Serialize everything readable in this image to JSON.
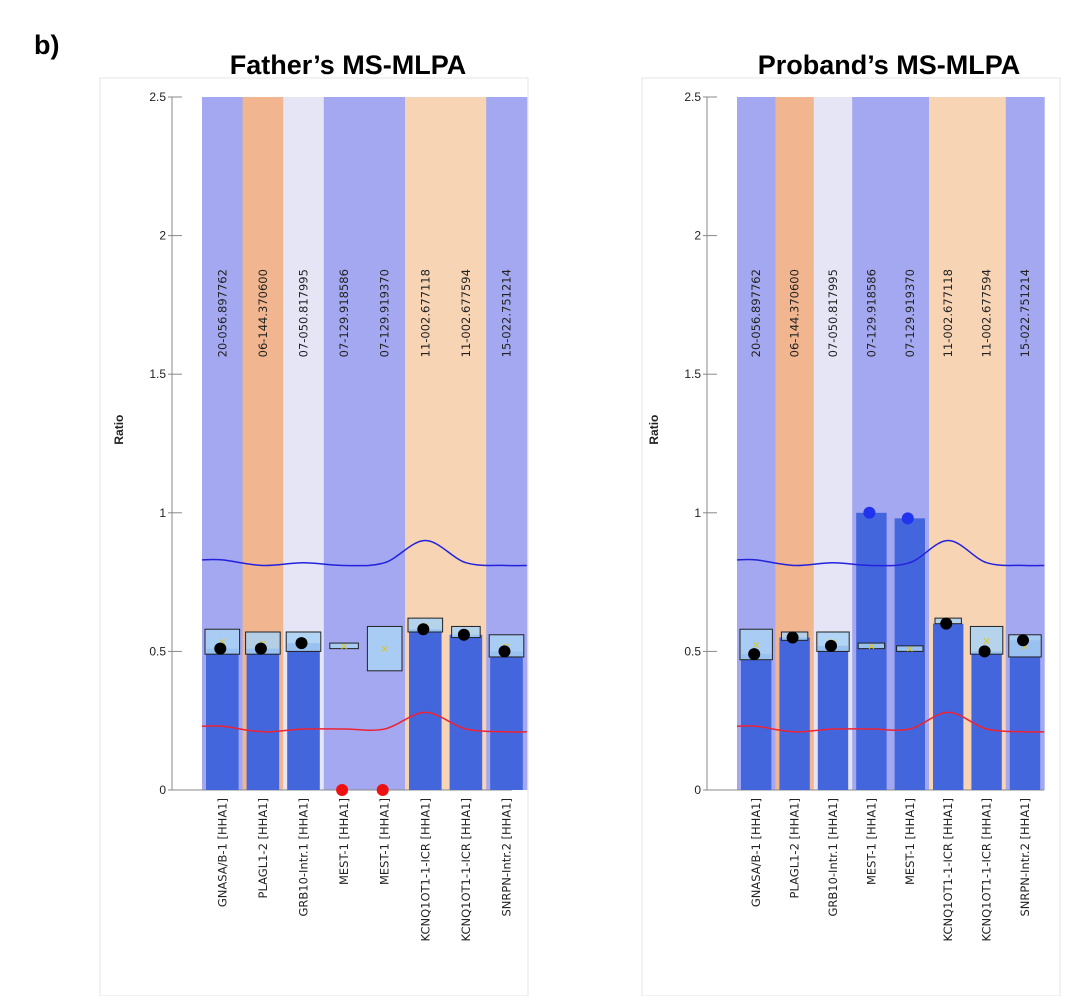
{
  "panel_label": "b)",
  "colors": {
    "lane_blue": "#a3a8f0",
    "lane_orange": "#f1b68f",
    "lane_lavender": "#e5e5f6",
    "lane_peach": "#f7d4b4",
    "bar": "#4466dd",
    "box_fill": "#a9d2f5",
    "dot": "#000000",
    "dot_blue": "#2233ee",
    "dot_red": "#ee1111",
    "upper_line": "#2222dd",
    "lower_line": "#ee2233"
  },
  "chart_data": [
    {
      "type": "bar",
      "title": "Father’s MS-MLPA",
      "ylabel": "Ratio",
      "ylim": [
        0,
        2.5
      ],
      "yticks": [
        "0",
        "0.5",
        "1",
        "1.5",
        "2",
        "2.5"
      ],
      "lane_colors": [
        "lane_blue",
        "lane_orange",
        "lane_lavender",
        "lane_blue",
        "lane_blue",
        "lane_peach",
        "lane_peach",
        "lane_blue"
      ],
      "categories": [
        "GNASA/B-1 [HHA1]",
        "PLAGL1-2 [HHA1]",
        "GRB10-Intr.1 [HHA1]",
        "MEST-1 [HHA1]",
        "MEST-1 [HHA1]",
        "KCNQ1OT1-1-ICR [HHA1]",
        "KCNQ1OT1-1-ICR [HHA1]",
        "SNRPN-Intr.2 [HHA1]"
      ],
      "positions": [
        "20-056.897762",
        "06-144.370600",
        "07-050.817995",
        "07-129.918586",
        "07-129.919370",
        "11-002.677118",
        "11-002.677594",
        "15-022.751214"
      ],
      "values": [
        0.51,
        0.51,
        0.53,
        0.0,
        0.0,
        0.58,
        0.56,
        0.5
      ],
      "bar_heights": [
        0.51,
        0.51,
        0.53,
        null,
        null,
        0.58,
        0.56,
        0.5
      ],
      "box_ranges": [
        [
          0.49,
          0.58
        ],
        [
          0.49,
          0.57
        ],
        [
          0.5,
          0.57
        ],
        [
          0.51,
          0.53
        ],
        [
          0.43,
          0.59
        ],
        [
          0.57,
          0.62
        ],
        [
          0.55,
          0.59
        ],
        [
          0.48,
          0.56
        ]
      ],
      "point_colors": [
        "dot",
        "dot",
        "dot",
        "dot_red",
        "dot_red",
        "dot",
        "dot",
        "dot"
      ],
      "upper_line": [
        0.83,
        0.81,
        0.82,
        0.81,
        0.82,
        0.9,
        0.82,
        0.81
      ],
      "lower_line": [
        0.23,
        0.21,
        0.22,
        0.22,
        0.22,
        0.28,
        0.22,
        0.21
      ]
    },
    {
      "type": "bar",
      "title": "Proband’s MS-MLPA",
      "ylabel": "Ratio",
      "ylim": [
        0,
        2.5
      ],
      "yticks": [
        "0",
        "0.5",
        "1",
        "1.5",
        "2",
        "2.5"
      ],
      "lane_colors": [
        "lane_blue",
        "lane_orange",
        "lane_lavender",
        "lane_blue",
        "lane_blue",
        "lane_peach",
        "lane_peach",
        "lane_blue"
      ],
      "categories": [
        "GNASA/B-1 [HHA1]",
        "PLAGL1-2 [HHA1]",
        "GRB10-Intr.1 [HHA1]",
        "MEST-1 [HHA1]",
        "MEST-1 [HHA1]",
        "KCNQ1OT1-1-ICR [HHA1]",
        "KCNQ1OT1-1-ICR [HHA1]",
        "SNRPN-Intr.2 [HHA1]"
      ],
      "positions": [
        "20-056.897762",
        "06-144.370600",
        "07-050.817995",
        "07-129.918586",
        "07-129.919370",
        "11-002.677118",
        "11-002.677594",
        "15-022.751214"
      ],
      "values": [
        0.49,
        0.55,
        0.52,
        1.0,
        0.98,
        0.6,
        0.5,
        0.54
      ],
      "bar_heights": [
        0.49,
        0.55,
        0.52,
        1.0,
        0.98,
        0.6,
        0.5,
        0.54
      ],
      "box_ranges": [
        [
          0.47,
          0.58
        ],
        [
          0.54,
          0.57
        ],
        [
          0.5,
          0.57
        ],
        [
          0.51,
          0.53
        ],
        [
          0.5,
          0.52
        ],
        [
          0.6,
          0.62
        ],
        [
          0.49,
          0.59
        ],
        [
          0.48,
          0.56
        ]
      ],
      "point_colors": [
        "dot",
        "dot",
        "dot",
        "dot_blue",
        "dot_blue",
        "dot",
        "dot",
        "dot"
      ],
      "upper_line": [
        0.83,
        0.81,
        0.82,
        0.81,
        0.82,
        0.9,
        0.82,
        0.81
      ],
      "lower_line": [
        0.23,
        0.21,
        0.22,
        0.22,
        0.22,
        0.28,
        0.22,
        0.21
      ]
    }
  ]
}
